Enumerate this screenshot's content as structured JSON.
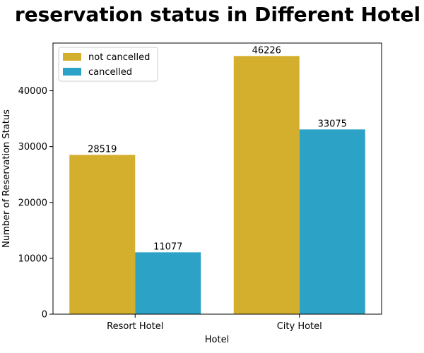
{
  "chart_data": {
    "type": "bar",
    "title": "reservation status in Different Hotel",
    "xlabel": "Hotel",
    "ylabel": "Number of Reservation Status",
    "categories": [
      "Resort Hotel",
      "City Hotel"
    ],
    "series": [
      {
        "name": "not cancelled",
        "color": "#d4af2d",
        "values": [
          28519,
          46226
        ]
      },
      {
        "name": "cancelled",
        "color": "#2ca2c6",
        "values": [
          11077,
          33075
        ]
      }
    ],
    "ylim": [
      0,
      48537
    ],
    "yticks": [
      0,
      10000,
      20000,
      30000,
      40000
    ],
    "legend_position": "top-left",
    "grid": false
  }
}
